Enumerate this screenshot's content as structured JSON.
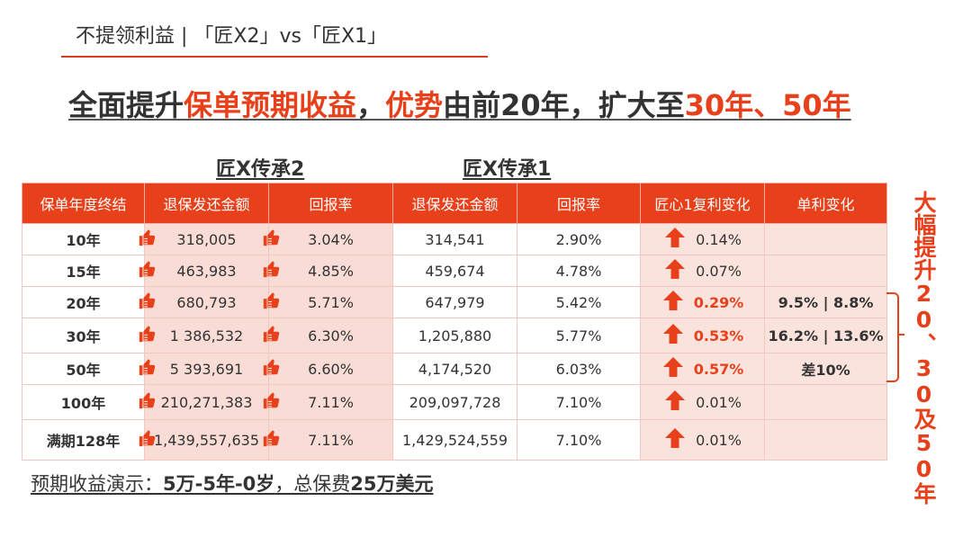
{
  "header": {
    "title": "不提领利益 |  「匠X2」vs「匠X1」"
  },
  "headline": {
    "p1": "全面提升",
    "p2": "保单预期收益",
    "p3": "，",
    "p4": "优势",
    "p5": "由前20年，扩大至",
    "p6": "30年、50年",
    "accent_color": "#e8401a"
  },
  "groups": {
    "x2": "匠X传承2",
    "x1": "匠X传承1"
  },
  "table": {
    "headers": [
      "保单年度终结",
      "退保发还金额",
      "回报率",
      "退保发还金额",
      "回报率",
      "匠心1复利变化",
      "单利变化"
    ],
    "rows": [
      {
        "year": "10年",
        "x2_amount": "318,005",
        "x2_rate": "3.04%",
        "x1_amount": "314,541",
        "x1_rate": "2.90%",
        "compound": "0.14%",
        "simple": ""
      },
      {
        "year": "15年",
        "x2_amount": "463,983",
        "x2_rate": "4.85%",
        "x1_amount": "459,674",
        "x1_rate": "4.78%",
        "compound": "0.07%",
        "simple": ""
      },
      {
        "year": "20年",
        "x2_amount": "680,793",
        "x2_rate": "5.71%",
        "x1_amount": "647,979",
        "x1_rate": "5.42%",
        "compound": "0.29%",
        "simple": "9.5% | 8.8%"
      },
      {
        "year": "30年",
        "x2_amount": "1 386,532",
        "x2_rate": "6.30%",
        "x1_amount": "1,205,880",
        "x1_rate": "5.77%",
        "compound": "0.53%",
        "simple": "16.2% | 13.6%"
      },
      {
        "year": "50年",
        "x2_amount": "5 393,691",
        "x2_rate": "6.60%",
        "x1_amount": "4,174,520",
        "x1_rate": "6.03%",
        "compound": "0.57%",
        "simple": "差10%"
      },
      {
        "year": "100年",
        "x2_amount": "210,271,383",
        "x2_rate": "7.11%",
        "x1_amount": "209,097,728",
        "x1_rate": "7.10%",
        "compound": "0.01%",
        "simple": ""
      },
      {
        "year": "满期128年",
        "x2_amount": "1,439,557,635",
        "x2_rate": "7.11%",
        "x1_amount": "1,429,524,559",
        "x1_rate": "7.10%",
        "compound": "0.01%",
        "simple": ""
      }
    ]
  },
  "side_note": "大幅提升20、30及50年",
  "footer": {
    "p1": "预期收益演示：",
    "p2": "5万-5年-0岁",
    "p3": "，总保费",
    "p4": "25万美元"
  },
  "icons": {
    "thumb": "thumbs-up-icon",
    "arrow": "up-arrow-icon"
  }
}
